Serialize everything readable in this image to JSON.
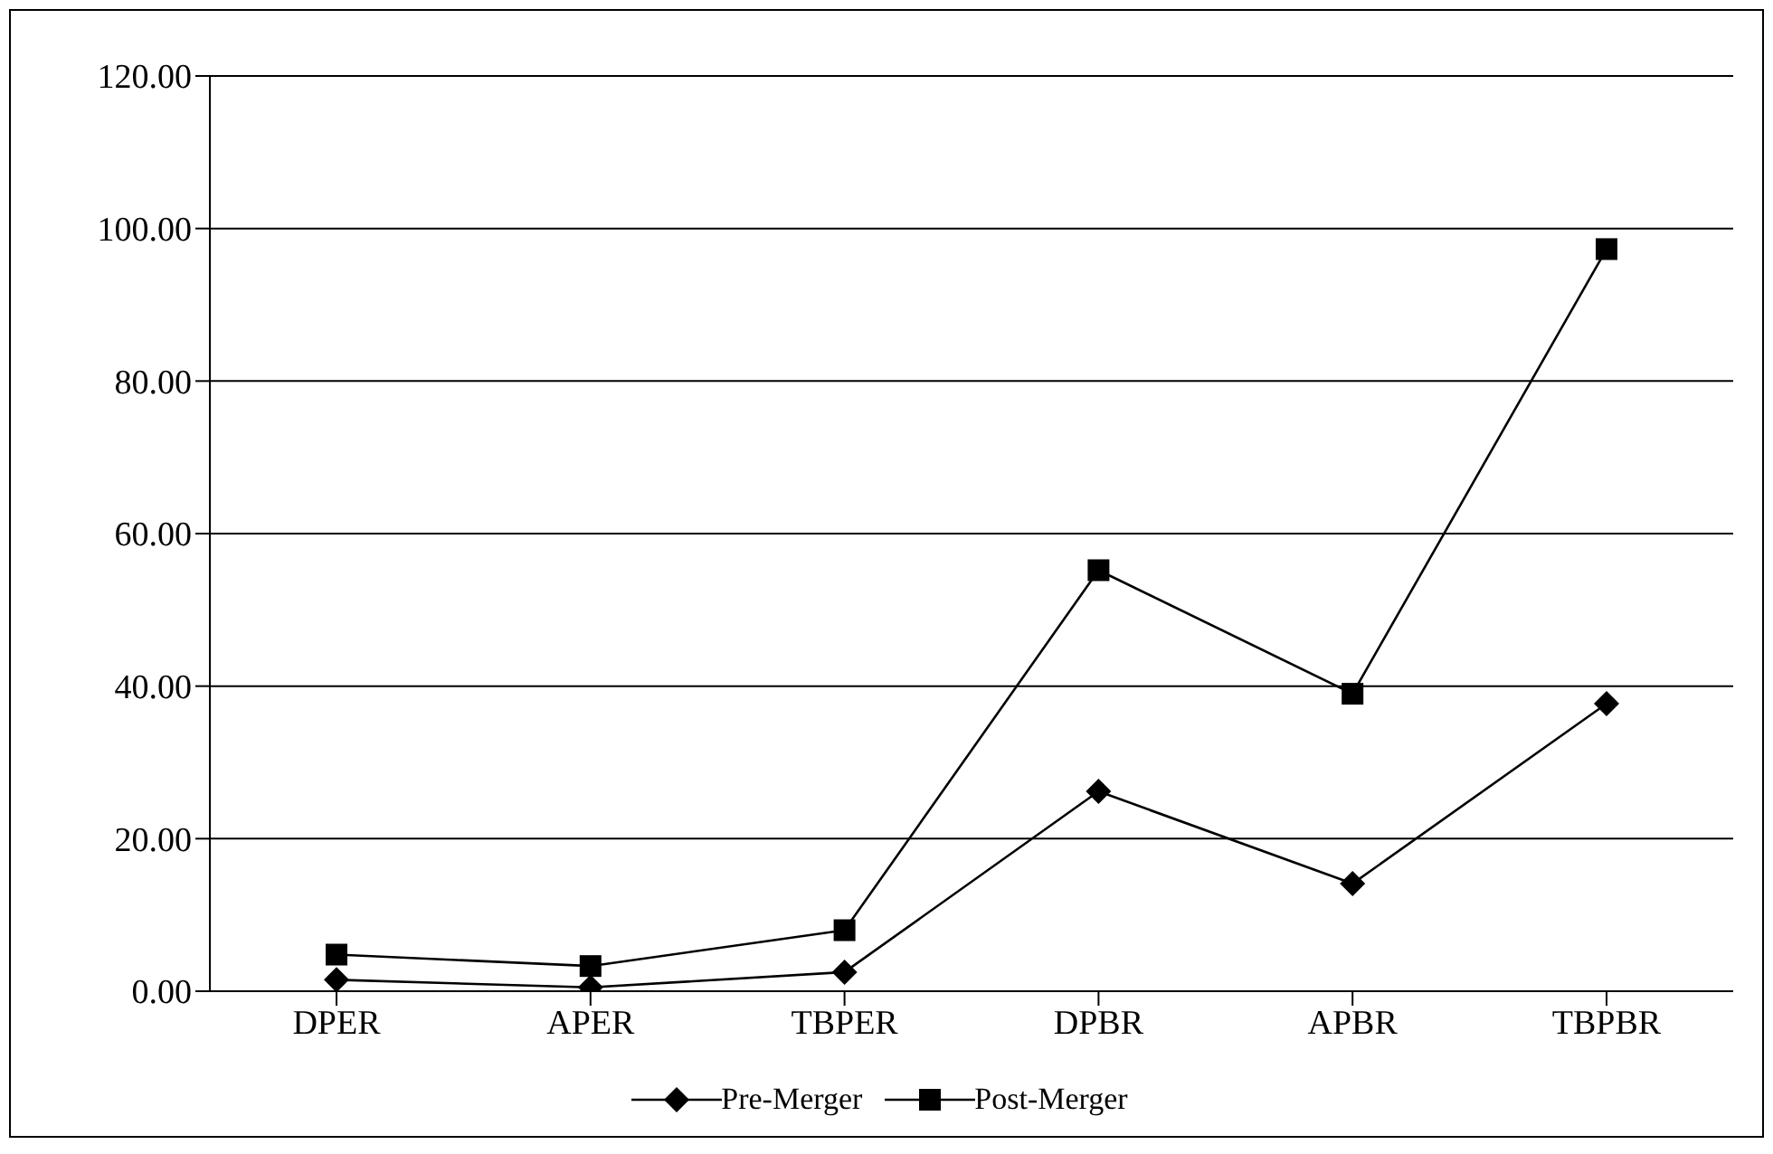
{
  "chart_data": {
    "type": "line",
    "categories": [
      "DPER",
      "APER",
      "TBPER",
      "DPBR",
      "APBR",
      "TBPBR"
    ],
    "series": [
      {
        "name": "Pre-Merger",
        "color": "#000000",
        "marker": "diamond",
        "values": [
          1.5,
          0.5,
          2.5,
          26.2,
          14.1,
          37.7
        ]
      },
      {
        "name": "Post-Merger",
        "color": "#000000",
        "marker": "square",
        "values": [
          4.8,
          3.3,
          8.0,
          55.2,
          39.0,
          97.3
        ]
      }
    ],
    "ylim": [
      0,
      120
    ],
    "yticks": [
      {
        "value": 0,
        "label": "0.00"
      },
      {
        "value": 20,
        "label": "20.00"
      },
      {
        "value": 40,
        "label": "40.00"
      },
      {
        "value": 60,
        "label": "60.00"
      },
      {
        "value": 80,
        "label": "80.00"
      },
      {
        "value": 100,
        "label": "100.00"
      },
      {
        "value": 120,
        "label": "120.00"
      }
    ],
    "grid": "y",
    "legend": "bottom",
    "line_style": "solid"
  }
}
